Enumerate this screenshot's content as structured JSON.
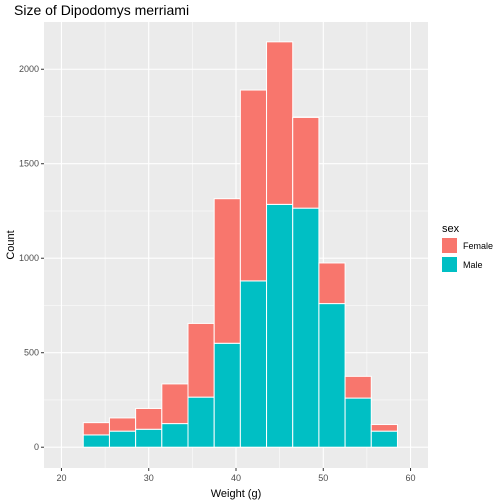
{
  "chart_data": {
    "type": "bar",
    "subtype": "stacked-histogram",
    "title": "Size of Dipodomys merriami",
    "xlabel": "Weight (g)",
    "ylabel": "Count",
    "xlim": [
      18,
      62
    ],
    "ylim": [
      -110,
      2250
    ],
    "x_ticks": [
      20,
      30,
      40,
      50,
      60
    ],
    "y_ticks": [
      0,
      500,
      1000,
      1500,
      2000
    ],
    "grid": true,
    "legend_position": "right",
    "legend_title": "sex",
    "bin_width": 3,
    "bins": [
      {
        "x0": 22.5,
        "x1": 25.5
      },
      {
        "x0": 25.5,
        "x1": 28.5
      },
      {
        "x0": 28.5,
        "x1": 31.5
      },
      {
        "x0": 31.5,
        "x1": 34.5
      },
      {
        "x0": 34.5,
        "x1": 37.5
      },
      {
        "x0": 37.5,
        "x1": 40.5
      },
      {
        "x0": 40.5,
        "x1": 43.5
      },
      {
        "x0": 43.5,
        "x1": 46.5
      },
      {
        "x0": 46.5,
        "x1": 49.5
      },
      {
        "x0": 49.5,
        "x1": 52.5
      },
      {
        "x0": 52.5,
        "x1": 55.5
      },
      {
        "x0": 55.5,
        "x1": 58.5
      }
    ],
    "series": [
      {
        "name": "Male",
        "color": "#00BFC4",
        "values": [
          65,
          85,
          95,
          125,
          265,
          550,
          880,
          1285,
          1265,
          760,
          260,
          85
        ]
      },
      {
        "name": "Female",
        "color": "#F8766D",
        "values": [
          65,
          70,
          110,
          210,
          390,
          765,
          1010,
          860,
          480,
          215,
          115,
          35
        ]
      }
    ],
    "legend_order": [
      "Female",
      "Male"
    ],
    "colors": {
      "panel": "#EBEBEB",
      "grid_major": "#FFFFFF",
      "tick": "#333333",
      "tick_label": "#4D4D4D"
    }
  }
}
